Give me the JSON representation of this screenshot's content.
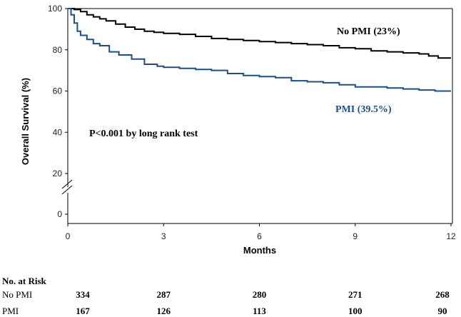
{
  "chart_data": {
    "type": "line",
    "title": "",
    "xlabel": "Months",
    "ylabel": "Overall Survival (%)",
    "xlim": [
      0,
      12
    ],
    "ylim": [
      0,
      100
    ],
    "x_ticks": [
      "0",
      "3",
      "6",
      "9",
      "12"
    ],
    "y_ticks": [
      "0",
      "20",
      "40",
      "60",
      "80",
      "100"
    ],
    "axis_break": true,
    "grid": false,
    "series": [
      {
        "name": "No PMI (23%)",
        "color": "#000000",
        "x": [
          0,
          0.2,
          0.4,
          0.6,
          0.8,
          1.0,
          1.2,
          1.5,
          1.8,
          2.1,
          2.4,
          2.7,
          3.0,
          3.5,
          4.0,
          4.5,
          5.0,
          5.5,
          6.0,
          6.5,
          7.0,
          7.5,
          8.0,
          8.5,
          9.0,
          9.5,
          10.0,
          10.5,
          11.0,
          11.3,
          11.6,
          12.0
        ],
        "y": [
          100,
          99.5,
          98.5,
          97,
          96,
          95,
          94,
          92.5,
          91,
          90,
          89,
          88.5,
          88,
          87.5,
          86.5,
          85.5,
          85,
          84.5,
          84,
          83.5,
          83,
          82.5,
          82,
          81,
          80.5,
          79.5,
          79,
          78.5,
          78,
          77,
          76,
          76
        ]
      },
      {
        "name": "PMI (39.5%)",
        "color": "#1a4f8c",
        "x": [
          0,
          0.1,
          0.2,
          0.3,
          0.4,
          0.6,
          0.8,
          1.0,
          1.3,
          1.6,
          2.0,
          2.4,
          2.8,
          3.0,
          3.5,
          4.0,
          4.5,
          5.0,
          5.5,
          6.0,
          6.5,
          7.0,
          7.5,
          8.0,
          8.5,
          9.0,
          9.5,
          10.0,
          10.5,
          11.0,
          11.5,
          12.0
        ],
        "y": [
          100,
          97,
          93,
          89,
          87,
          85,
          83,
          82,
          79,
          77.5,
          75.5,
          73,
          72,
          71.5,
          71,
          70.5,
          70,
          68.5,
          67.5,
          67,
          66.5,
          65,
          64.5,
          64,
          63,
          62,
          62,
          61.5,
          61,
          60.5,
          60,
          60
        ]
      }
    ],
    "annotations": {
      "no_pmi": "No PMI (23%)",
      "pmi": "PMI (39.5%)",
      "pvalue": "P<0.001 by long rank test"
    }
  },
  "risk_table": {
    "title": "No. at Risk",
    "rows": [
      {
        "label": "No PMI",
        "values": [
          "334",
          "287",
          "280",
          "271",
          "268"
        ]
      },
      {
        "label": "PMI",
        "values": [
          "167",
          "126",
          "113",
          "100",
          "90"
        ]
      }
    ]
  }
}
